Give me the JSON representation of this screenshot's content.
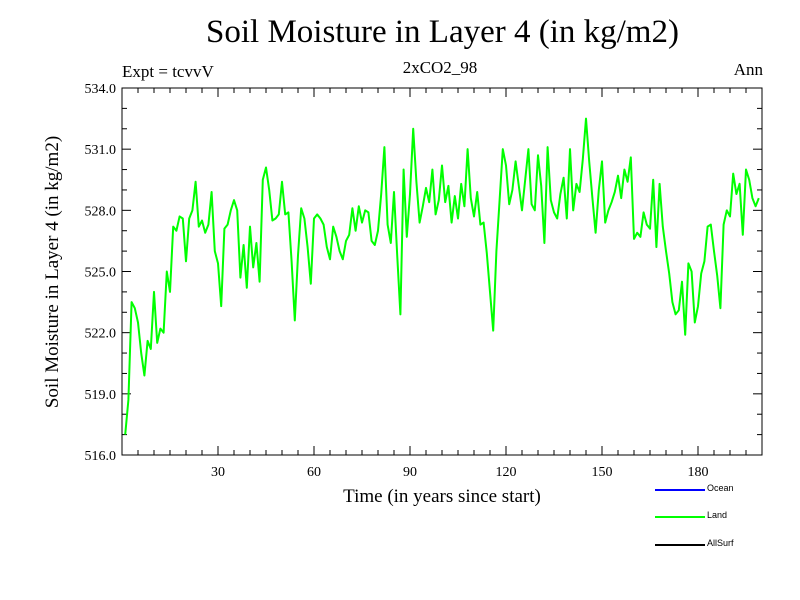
{
  "chart_data": {
    "type": "line",
    "title": "Soil Moisture in Layer 4 (in kg/m2)",
    "subtitle": "2xCO2_98",
    "expt_label": "Expt = tcvvV",
    "period_label": "Ann",
    "xlabel": "Time (in years since start)",
    "ylabel": "Soil Moisture in Layer 4 (in kg/m2)",
    "xlim": [
      0,
      200
    ],
    "ylim": [
      516.0,
      534.0
    ],
    "xticks": [
      30,
      60,
      90,
      120,
      150,
      180
    ],
    "yticks": [
      516.0,
      519.0,
      522.0,
      525.0,
      528.0,
      531.0,
      534.0
    ],
    "x_start": 1,
    "x_step": 1,
    "series": [
      {
        "name": "Ocean",
        "color": "#0000ff",
        "values": []
      },
      {
        "name": "Land",
        "color": "#00ff00",
        "values": [
          517.0,
          518.7,
          523.5,
          523.2,
          522.5,
          521.0,
          519.9,
          521.6,
          521.2,
          524.0,
          521.5,
          522.2,
          522.0,
          525.0,
          524.0,
          527.2,
          527.0,
          527.7,
          527.6,
          525.5,
          527.6,
          528.0,
          529.4,
          527.2,
          527.5,
          526.9,
          527.3,
          528.9,
          526.0,
          525.4,
          523.3,
          527.1,
          527.3,
          528.0,
          528.5,
          528.0,
          524.7,
          526.3,
          524.2,
          527.2,
          525.2,
          526.4,
          524.5,
          529.5,
          530.1,
          529.0,
          527.5,
          527.6,
          527.8,
          529.4,
          527.8,
          527.9,
          525.5,
          522.6,
          525.8,
          528.1,
          527.6,
          526.2,
          524.4,
          527.6,
          527.8,
          527.6,
          527.3,
          526.2,
          525.6,
          527.2,
          526.7,
          526.0,
          525.6,
          526.5,
          526.8,
          528.1,
          527.0,
          528.2,
          527.4,
          528.0,
          527.9,
          526.5,
          526.3,
          527.0,
          528.8,
          531.1,
          527.3,
          526.4,
          528.9,
          525.8,
          522.9,
          530.0,
          526.7,
          528.8,
          532.0,
          529.4,
          527.4,
          528.2,
          529.1,
          528.4,
          530.0,
          527.8,
          528.5,
          530.2,
          528.4,
          529.2,
          527.4,
          528.7,
          527.6,
          529.3,
          528.2,
          531.0,
          528.6,
          527.7,
          528.9,
          527.3,
          527.4,
          525.9,
          524.0,
          522.1,
          526.0,
          528.5,
          531.0,
          530.2,
          528.3,
          529.0,
          530.4,
          529.2,
          528.0,
          529.5,
          531.0,
          528.3,
          528.0,
          530.7,
          529.2,
          526.4,
          531.1,
          528.5,
          527.9,
          527.6,
          528.8,
          529.6,
          527.6,
          531.0,
          528.0,
          529.3,
          528.9,
          530.5,
          532.5,
          530.4,
          528.6,
          526.9,
          529.0,
          530.4,
          527.4,
          528.0,
          528.4,
          528.9,
          529.7,
          528.6,
          530.0,
          529.4,
          530.6,
          526.6,
          526.9,
          526.7,
          527.9,
          527.3,
          527.1,
          529.5,
          526.2,
          529.3,
          527.2,
          526.0,
          524.9,
          523.5,
          522.9,
          523.1,
          524.5,
          521.9,
          525.4,
          525.0,
          522.5,
          523.3,
          524.9,
          525.5,
          527.2,
          527.3,
          526.0,
          524.8,
          523.2,
          527.3,
          528.0,
          527.7,
          529.8,
          528.8,
          529.3,
          526.8,
          530.0,
          529.5,
          528.6,
          528.2,
          528.6
        ]
      },
      {
        "name": "AllSurf",
        "color": "#000000",
        "values": []
      }
    ],
    "legend_position": "bottom-right"
  }
}
